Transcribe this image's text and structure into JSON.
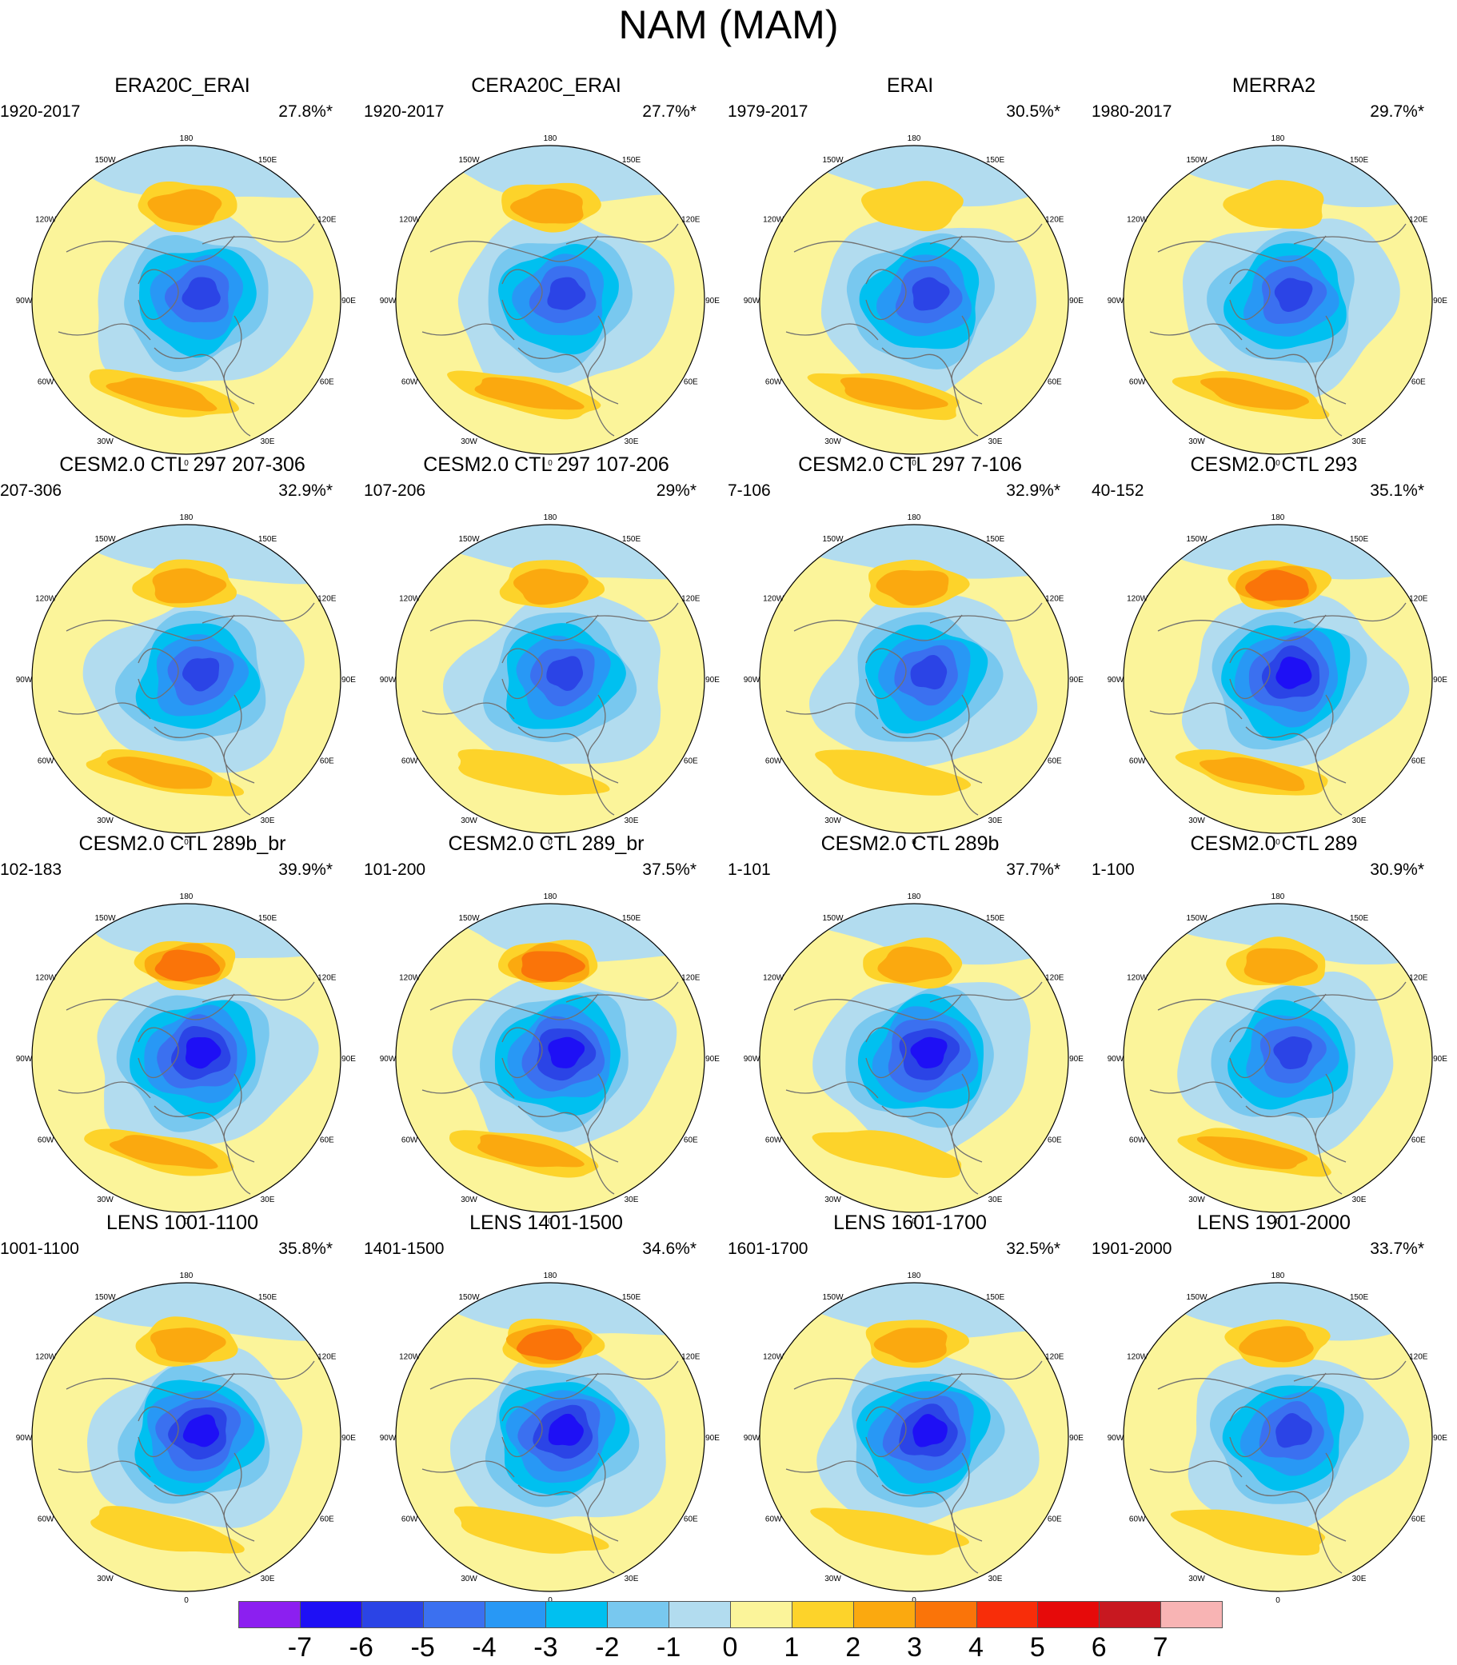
{
  "title": "NAM (MAM)",
  "chart_data": {
    "type": "polar-stereographic-contour-maps",
    "title": "NAM (MAM)",
    "field": "Northern Annular Mode regression pattern (MAM)",
    "longitude_labels": [
      "180",
      "150E",
      "120E",
      "90E",
      "60E",
      "30E",
      "0",
      "30W",
      "60W",
      "90W",
      "120W",
      "150W"
    ],
    "panels": [
      {
        "title": "ERA20C_ERAI",
        "period": "1920-2017",
        "variance": "27.8%*",
        "center_min": -4.6,
        "pacific_max": 2.1,
        "atlantic_max": 2.3
      },
      {
        "title": "CERA20C_ERAI",
        "period": "1920-2017",
        "variance": "27.7%*",
        "center_min": -4.4,
        "pacific_max": 2.1,
        "atlantic_max": 2.3
      },
      {
        "title": "ERAI",
        "period": "1979-2017",
        "variance": "30.5%*",
        "center_min": -4.6,
        "pacific_max": 2.0,
        "atlantic_max": 2.2
      },
      {
        "title": "MERRA2",
        "period": "1980-2017",
        "variance": "29.7%*",
        "center_min": -4.5,
        "pacific_max": 2.0,
        "atlantic_max": 2.2
      },
      {
        "title": "CESM2.0 CTL 297 207-306",
        "period": "207-306",
        "variance": "32.9%*",
        "center_min": -5.0,
        "pacific_max": 2.4,
        "atlantic_max": 2.1
      },
      {
        "title": "CESM2.0 CTL 297 107-206",
        "period": "107-206",
        "variance": "29%*",
        "center_min": -4.6,
        "pacific_max": 2.5,
        "atlantic_max": 2.0
      },
      {
        "title": "CESM2.0 CTL 297 7-106",
        "period": "7-106",
        "variance": "32.9%*",
        "center_min": -5.0,
        "pacific_max": 2.3,
        "atlantic_max": 2.0
      },
      {
        "title": "CESM2.0 CTL 293",
        "period": "40-152",
        "variance": "35.1%*",
        "center_min": -6.0,
        "pacific_max": 3.5,
        "atlantic_max": 2.2
      },
      {
        "title": "CESM2.0 CTL 289b_br",
        "period": "102-183",
        "variance": "39.9%*",
        "center_min": -5.7,
        "pacific_max": 3.6,
        "atlantic_max": 2.5
      },
      {
        "title": "CESM2.0 CTL 289_br",
        "period": "101-200",
        "variance": "37.5%*",
        "center_min": -5.2,
        "pacific_max": 3.3,
        "atlantic_max": 2.1
      },
      {
        "title": "CESM2.0 CTL 289b",
        "period": "1-101",
        "variance": "37.7%*",
        "center_min": -5.8,
        "pacific_max": 2.8,
        "atlantic_max": 2.0
      },
      {
        "title": "CESM2.0 CTL 289",
        "period": "1-100",
        "variance": "30.9%*",
        "center_min": -5.0,
        "pacific_max": 2.2,
        "atlantic_max": 2.2
      },
      {
        "title": "LENS 1001-1100",
        "period": "1001-1100",
        "variance": "35.8%*",
        "center_min": -5.1,
        "pacific_max": 2.5,
        "atlantic_max": 2.0
      },
      {
        "title": "LENS 1401-1500",
        "period": "1401-1500",
        "variance": "34.6%*",
        "center_min": -5.1,
        "pacific_max": 3.3,
        "atlantic_max": 2.0
      },
      {
        "title": "LENS 1601-1700",
        "period": "1601-1700",
        "variance": "32.5%*",
        "center_min": -5.2,
        "pacific_max": 2.7,
        "atlantic_max": 2.0
      },
      {
        "title": "LENS 1901-2000",
        "period": "1901-2000",
        "variance": "33.7%*",
        "center_min": -5.0,
        "pacific_max": 2.2,
        "atlantic_max": 2.0
      }
    ],
    "colorbar": {
      "levels": [
        "-7",
        "-6",
        "-5",
        "-4",
        "-3",
        "-2",
        "-1",
        "0",
        "1",
        "2",
        "3",
        "4",
        "5",
        "6",
        "7"
      ],
      "colors": [
        "#8c1ff0",
        "#1e10f5",
        "#2b44e6",
        "#3b70f0",
        "#2898f5",
        "#00c0f0",
        "#78c8ef",
        "#b2dcef",
        "#fbf49a",
        "#fdd32a",
        "#fba90f",
        "#fa7409",
        "#f82d09",
        "#e60a0a",
        "#c81820",
        "#f8b4b4"
      ]
    }
  }
}
